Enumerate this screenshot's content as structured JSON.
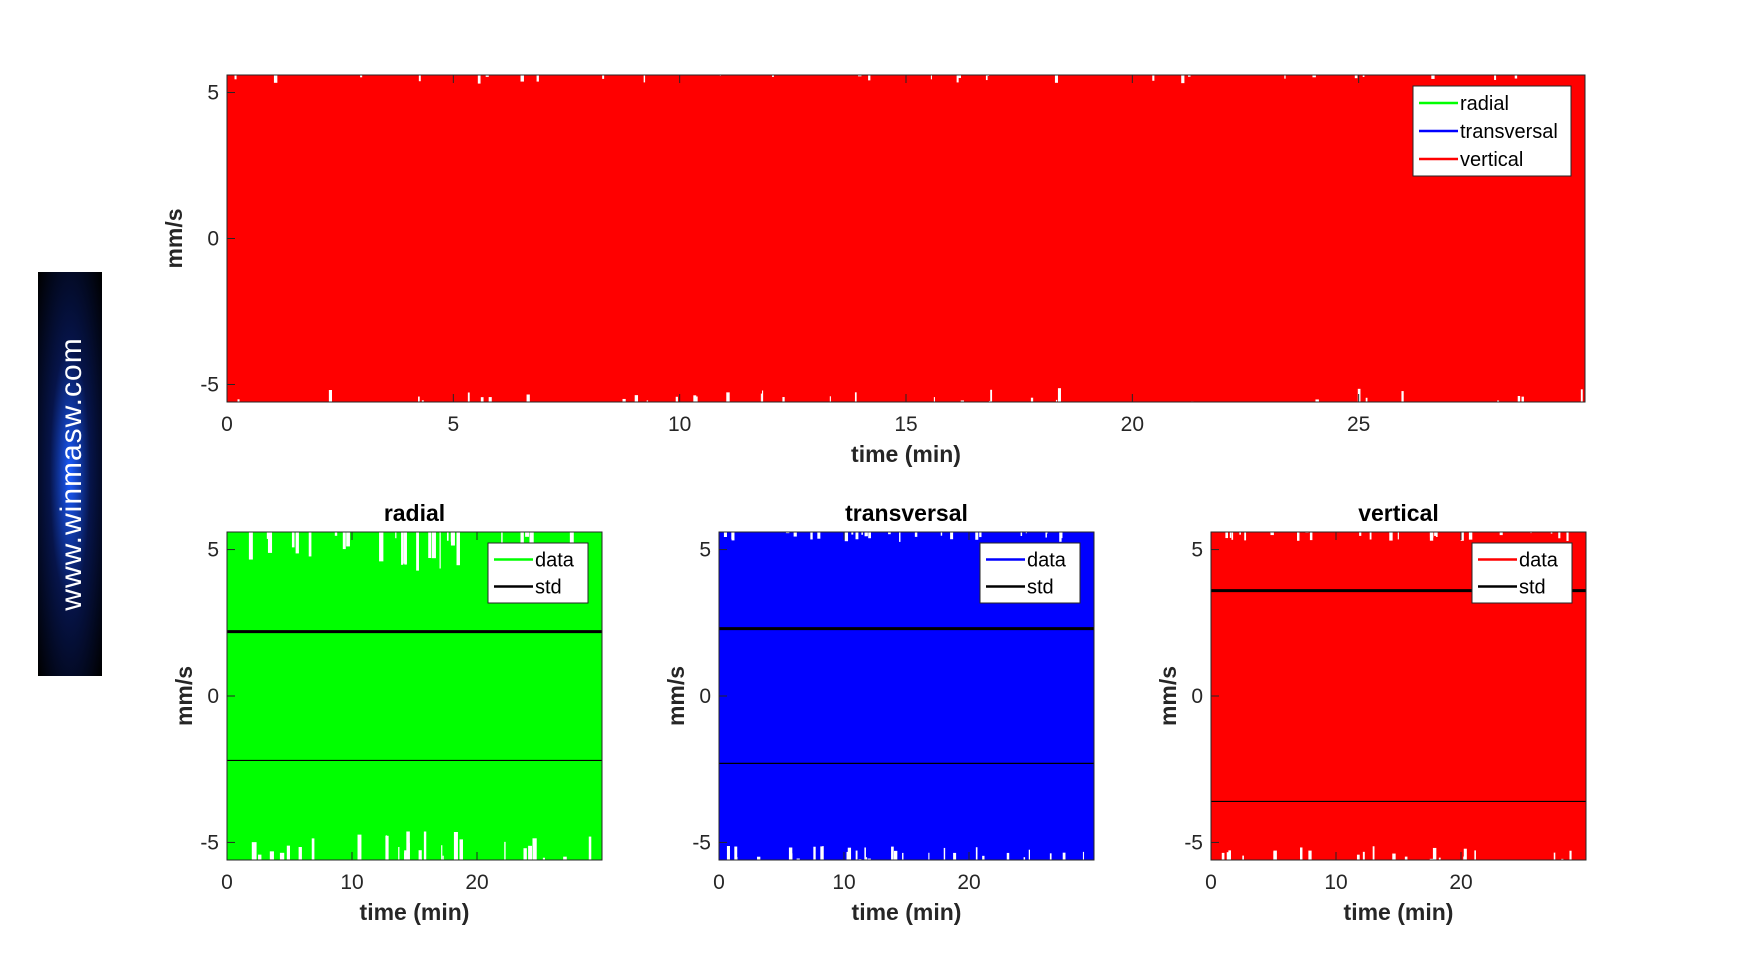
{
  "brand": {
    "text": "www.winmasw.com"
  },
  "colors": {
    "radial": "#00ff00",
    "transversal": "#0000ff",
    "vertical": "#ff0000",
    "std": "#000000"
  },
  "chart_data": [
    {
      "id": "combined",
      "type": "line",
      "title": "",
      "xlabel": "time (min)",
      "ylabel": "mm/s",
      "xlim": [
        0,
        30
      ],
      "ylim": [
        -5.6,
        5.6
      ],
      "xticks": [
        0,
        5,
        10,
        15,
        20,
        25
      ],
      "yticks": [
        -5,
        0,
        5
      ],
      "legend_position": "top-right",
      "series": [
        {
          "name": "radial",
          "color": "#00ff00",
          "amplitude": 5.6
        },
        {
          "name": "transversal",
          "color": "#0000ff",
          "amplitude": 5.6
        },
        {
          "name": "vertical",
          "color": "#ff0000",
          "amplitude": 5.6
        }
      ]
    },
    {
      "id": "radial",
      "type": "line",
      "title": "radial",
      "xlabel": "time (min)",
      "ylabel": "mm/s",
      "xlim": [
        0,
        30
      ],
      "ylim": [
        -5.6,
        5.6
      ],
      "xticks": [
        0,
        10,
        20
      ],
      "yticks": [
        -5,
        0,
        5
      ],
      "legend_position": "top-right",
      "series": [
        {
          "name": "data",
          "color": "#00ff00",
          "amplitude": 5.6
        },
        {
          "name": "std",
          "color": "#000000",
          "value": 2.2
        }
      ]
    },
    {
      "id": "transversal",
      "type": "line",
      "title": "transversal",
      "xlabel": "time (min)",
      "ylabel": "mm/s",
      "xlim": [
        0,
        30
      ],
      "ylim": [
        -5.6,
        5.6
      ],
      "xticks": [
        0,
        10,
        20
      ],
      "yticks": [
        -5,
        0,
        5
      ],
      "legend_position": "top-right",
      "series": [
        {
          "name": "data",
          "color": "#0000ff",
          "amplitude": 5.6
        },
        {
          "name": "std",
          "color": "#000000",
          "value": 2.3
        }
      ]
    },
    {
      "id": "vertical",
      "type": "line",
      "title": "vertical",
      "xlabel": "time (min)",
      "ylabel": "mm/s",
      "xlim": [
        0,
        30
      ],
      "ylim": [
        -5.6,
        5.6
      ],
      "xticks": [
        0,
        10,
        20
      ],
      "yticks": [
        -5,
        0,
        5
      ],
      "legend_position": "top-right",
      "series": [
        {
          "name": "data",
          "color": "#ff0000",
          "amplitude": 5.6
        },
        {
          "name": "std",
          "color": "#000000",
          "value": 3.6
        }
      ]
    }
  ]
}
